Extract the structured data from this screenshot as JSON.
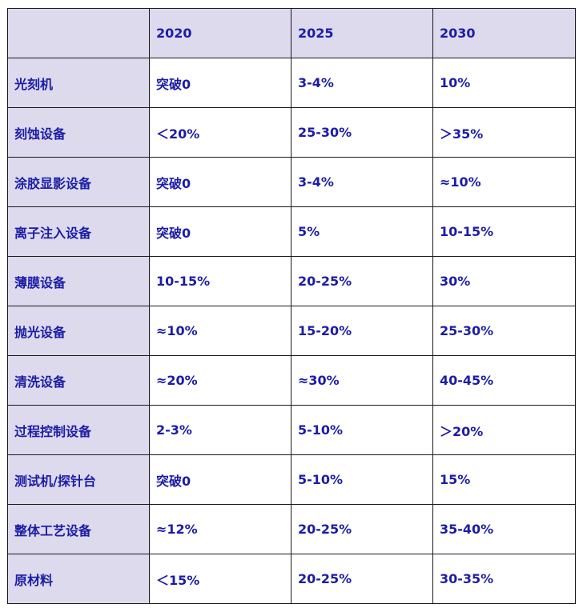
{
  "table": {
    "header": [
      "",
      "2020",
      "2025",
      "2030"
    ],
    "rows": [
      {
        "label": "光刻机",
        "v2020": "突破0",
        "v2025": "3-4%",
        "v2030": "10%"
      },
      {
        "label": "刻蚀设备",
        "v2020": "＜20%",
        "v2025": "25-30%",
        "v2030": "＞35%"
      },
      {
        "label": "涂胶显影设备",
        "v2020": "突破0",
        "v2025": "3-4%",
        "v2030": "≈10%"
      },
      {
        "label": "离子注入设备",
        "v2020": "突破0",
        "v2025": "5%",
        "v2030": "10-15%"
      },
      {
        "label": "薄膜设备",
        "v2020": "10-15%",
        "v2025": "20-25%",
        "v2030": "30%"
      },
      {
        "label": "抛光设备",
        "v2020": "≈10%",
        "v2025": "15-20%",
        "v2030": "25-30%"
      },
      {
        "label": "清洗设备",
        "v2020": "≈20%",
        "v2025": "≈30%",
        "v2030": "40-45%"
      },
      {
        "label": "过程控制设备",
        "v2020": "2-3%",
        "v2025": "5-10%",
        "v2030": "＞20%"
      },
      {
        "label": "测试机/探针台",
        "v2020": "突破0",
        "v2025": "5-10%",
        "v2030": "15%"
      },
      {
        "label": "整体工艺设备",
        "v2020": "≈12%",
        "v2025": "20-25%",
        "v2030": "35-40%"
      },
      {
        "label": "原材料",
        "v2020": "＜15%",
        "v2025": "20-25%",
        "v2030": "30-35%"
      }
    ]
  },
  "colors": {
    "header_shade": "#dcdaec",
    "text": "#1c1ca6",
    "border": "#1a1a1a"
  }
}
